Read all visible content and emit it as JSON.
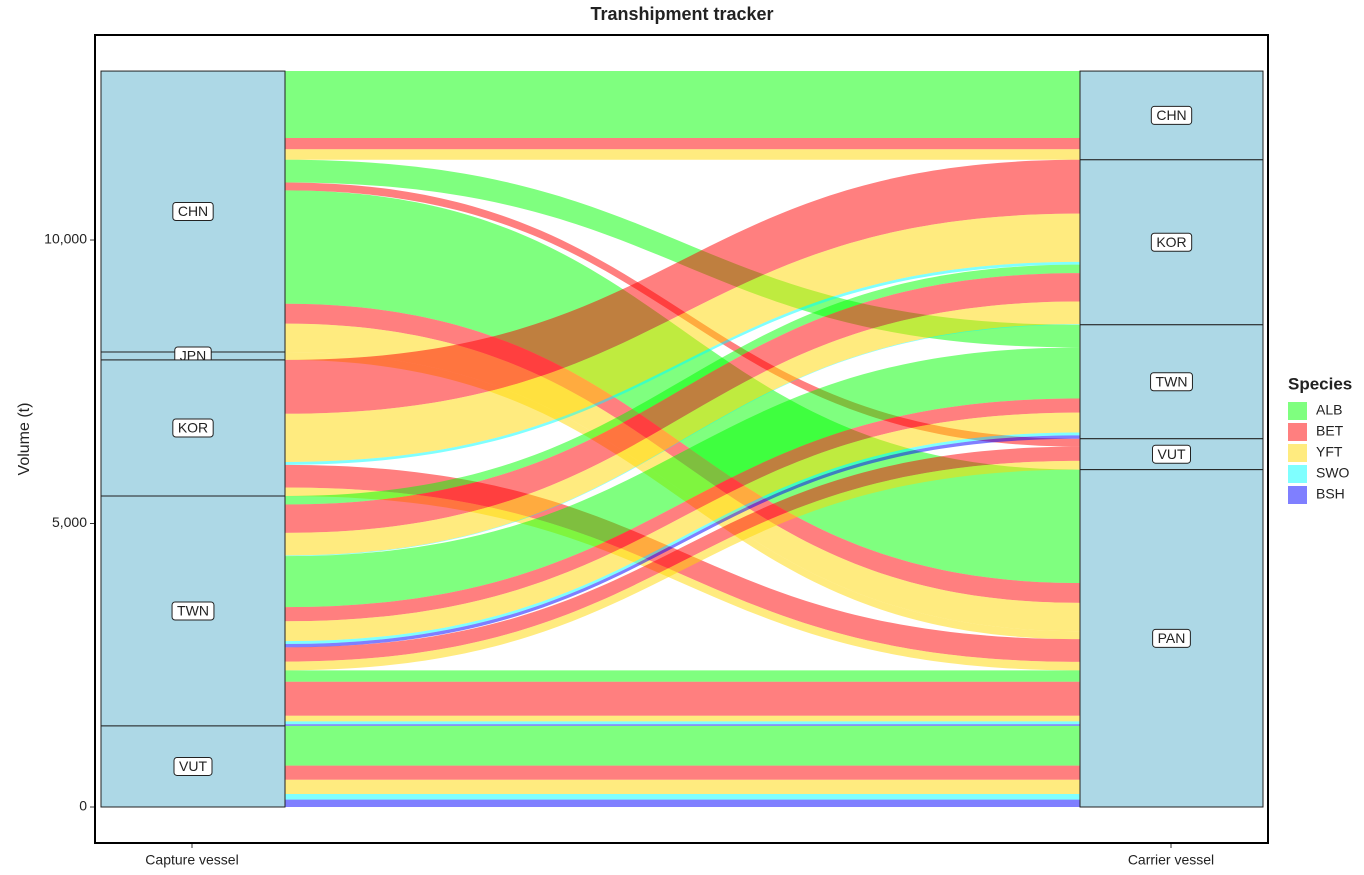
{
  "chart_data": {
    "type": "alluvial",
    "title": "Transhipment tracker",
    "y_label": "Volume (t)",
    "axes": [
      "Capture vessel",
      "Carrier vessel"
    ],
    "capture_strata": [
      "CHN",
      "JPN",
      "KOR",
      "TWN",
      "VUT"
    ],
    "carrier_strata": [
      "CHN",
      "KOR",
      "TWN",
      "VUT",
      "PAN"
    ],
    "legend_title": "Species",
    "species": [
      {
        "name": "ALB",
        "color": "#00ff00"
      },
      {
        "name": "BET",
        "color": "#ff0000"
      },
      {
        "name": "YFT",
        "color": "#ffd700"
      },
      {
        "name": "SWO",
        "color": "#00ffff"
      },
      {
        "name": "BSH",
        "color": "#0000ff"
      }
    ],
    "flows": [
      {
        "from": "CHN",
        "to": "CHN",
        "species": "ALB",
        "value": 1180
      },
      {
        "from": "CHN",
        "to": "CHN",
        "species": "BET",
        "value": 200
      },
      {
        "from": "CHN",
        "to": "CHN",
        "species": "YFT",
        "value": 185
      },
      {
        "from": "CHN",
        "to": "TWN",
        "species": "ALB",
        "value": 400
      },
      {
        "from": "CHN",
        "to": "VUT",
        "species": "BET",
        "value": 140
      },
      {
        "from": "CHN",
        "to": "PAN",
        "species": "ALB",
        "value": 2000
      },
      {
        "from": "CHN",
        "to": "PAN",
        "species": "BET",
        "value": 350
      },
      {
        "from": "CHN",
        "to": "PAN",
        "species": "YFT",
        "value": 500
      },
      {
        "from": "JPN",
        "to": "PAN",
        "species": "YFT",
        "value": 140
      },
      {
        "from": "KOR",
        "to": "KOR",
        "species": "BET",
        "value": 950
      },
      {
        "from": "KOR",
        "to": "KOR",
        "species": "YFT",
        "value": 850
      },
      {
        "from": "KOR",
        "to": "KOR",
        "species": "SWO",
        "value": 50
      },
      {
        "from": "KOR",
        "to": "PAN",
        "species": "BET",
        "value": 400
      },
      {
        "from": "KOR",
        "to": "PAN",
        "species": "YFT",
        "value": 150
      },
      {
        "from": "TWN",
        "to": "KOR",
        "species": "ALB",
        "value": 150
      },
      {
        "from": "TWN",
        "to": "KOR",
        "species": "BET",
        "value": 500
      },
      {
        "from": "TWN",
        "to": "KOR",
        "species": "YFT",
        "value": 400
      },
      {
        "from": "TWN",
        "to": "KOR",
        "species": "SWO",
        "value": 10
      },
      {
        "from": "TWN",
        "to": "TWN",
        "species": "ALB",
        "value": 900
      },
      {
        "from": "TWN",
        "to": "TWN",
        "species": "BET",
        "value": 250
      },
      {
        "from": "TWN",
        "to": "TWN",
        "species": "YFT",
        "value": 350
      },
      {
        "from": "TWN",
        "to": "TWN",
        "species": "SWO",
        "value": 50
      },
      {
        "from": "TWN",
        "to": "TWN",
        "species": "BSH",
        "value": 60
      },
      {
        "from": "TWN",
        "to": "VUT",
        "species": "BET",
        "value": 250
      },
      {
        "from": "TWN",
        "to": "VUT",
        "species": "YFT",
        "value": 155
      },
      {
        "from": "TWN",
        "to": "PAN",
        "species": "ALB",
        "value": 200
      },
      {
        "from": "TWN",
        "to": "PAN",
        "species": "BET",
        "value": 600
      },
      {
        "from": "TWN",
        "to": "PAN",
        "species": "YFT",
        "value": 100
      },
      {
        "from": "TWN",
        "to": "PAN",
        "species": "SWO",
        "value": 50
      },
      {
        "from": "TWN",
        "to": "PAN",
        "species": "BSH",
        "value": 30
      },
      {
        "from": "VUT",
        "to": "PAN",
        "species": "ALB",
        "value": 700
      },
      {
        "from": "VUT",
        "to": "PAN",
        "species": "BET",
        "value": 250
      },
      {
        "from": "VUT",
        "to": "PAN",
        "species": "YFT",
        "value": 250
      },
      {
        "from": "VUT",
        "to": "PAN",
        "species": "SWO",
        "value": 100
      },
      {
        "from": "VUT",
        "to": "PAN",
        "species": "BSH",
        "value": 130
      }
    ],
    "ylim": [
      -635,
      13616
    ],
    "yticks": [
      {
        "value": 0,
        "label": "0"
      },
      {
        "value": 5000,
        "label": "5,000"
      },
      {
        "value": 10000,
        "label": "10,000"
      }
    ]
  }
}
